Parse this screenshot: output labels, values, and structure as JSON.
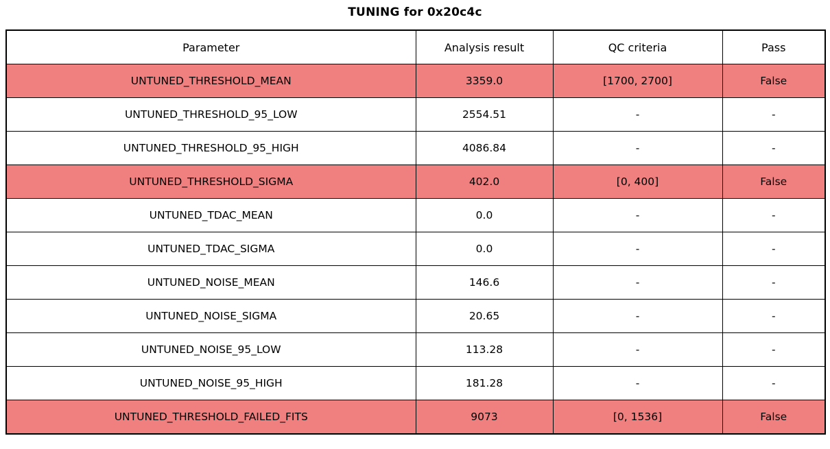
{
  "title": "TUNING for 0x20c4c",
  "colors": {
    "failed_row_background": "#f08080",
    "border": "#000000",
    "background": "#ffffff",
    "text": "#000000"
  },
  "table": {
    "headers": [
      "Parameter",
      "Analysis result",
      "QC criteria",
      "Pass"
    ],
    "rows": [
      {
        "parameter": "UNTUNED_THRESHOLD_MEAN",
        "analysis_result": "3359.0",
        "qc_criteria": "[1700, 2700]",
        "pass": "False",
        "failed": true
      },
      {
        "parameter": "UNTUNED_THRESHOLD_95_LOW",
        "analysis_result": "2554.51",
        "qc_criteria": "-",
        "pass": "-",
        "failed": false
      },
      {
        "parameter": "UNTUNED_THRESHOLD_95_HIGH",
        "analysis_result": "4086.84",
        "qc_criteria": "-",
        "pass": "-",
        "failed": false
      },
      {
        "parameter": "UNTUNED_THRESHOLD_SIGMA",
        "analysis_result": "402.0",
        "qc_criteria": "[0, 400]",
        "pass": "False",
        "failed": true
      },
      {
        "parameter": "UNTUNED_TDAC_MEAN",
        "analysis_result": "0.0",
        "qc_criteria": "-",
        "pass": "-",
        "failed": false
      },
      {
        "parameter": "UNTUNED_TDAC_SIGMA",
        "analysis_result": "0.0",
        "qc_criteria": "-",
        "pass": "-",
        "failed": false
      },
      {
        "parameter": "UNTUNED_NOISE_MEAN",
        "analysis_result": "146.6",
        "qc_criteria": "-",
        "pass": "-",
        "failed": false
      },
      {
        "parameter": "UNTUNED_NOISE_SIGMA",
        "analysis_result": "20.65",
        "qc_criteria": "-",
        "pass": "-",
        "failed": false
      },
      {
        "parameter": "UNTUNED_NOISE_95_LOW",
        "analysis_result": "113.28",
        "qc_criteria": "-",
        "pass": "-",
        "failed": false
      },
      {
        "parameter": "UNTUNED_NOISE_95_HIGH",
        "analysis_result": "181.28",
        "qc_criteria": "-",
        "pass": "-",
        "failed": false
      },
      {
        "parameter": "UNTUNED_THRESHOLD_FAILED_FITS",
        "analysis_result": "9073",
        "qc_criteria": "[0, 1536]",
        "pass": "False",
        "failed": true
      }
    ]
  },
  "chart_data": {
    "type": "table",
    "title": "TUNING for 0x20c4c",
    "columns": [
      "Parameter",
      "Analysis result",
      "QC criteria",
      "Pass"
    ],
    "rows": [
      [
        "UNTUNED_THRESHOLD_MEAN",
        "3359.0",
        "[1700, 2700]",
        "False"
      ],
      [
        "UNTUNED_THRESHOLD_95_LOW",
        "2554.51",
        "-",
        "-"
      ],
      [
        "UNTUNED_THRESHOLD_95_HIGH",
        "4086.84",
        "-",
        "-"
      ],
      [
        "UNTUNED_THRESHOLD_SIGMA",
        "402.0",
        "[0, 400]",
        "False"
      ],
      [
        "UNTUNED_TDAC_MEAN",
        "0.0",
        "-",
        "-"
      ],
      [
        "UNTUNED_TDAC_SIGMA",
        "0.0",
        "-",
        "-"
      ],
      [
        "UNTUNED_NOISE_MEAN",
        "146.6",
        "-",
        "-"
      ],
      [
        "UNTUNED_NOISE_SIGMA",
        "20.65",
        "-",
        "-"
      ],
      [
        "UNTUNED_NOISE_95_LOW",
        "113.28",
        "-",
        "-"
      ],
      [
        "UNTUNED_NOISE_95_HIGH",
        "181.28",
        "-",
        "-"
      ],
      [
        "UNTUNED_THRESHOLD_FAILED_FITS",
        "9073",
        "[0, 1536]",
        "False"
      ]
    ],
    "highlighted_row_indices": [
      0,
      3,
      10
    ],
    "highlight_color": "#f08080",
    "layout": {
      "grid": true,
      "header_background": "#ffffff",
      "title_position": "top-center"
    }
  }
}
